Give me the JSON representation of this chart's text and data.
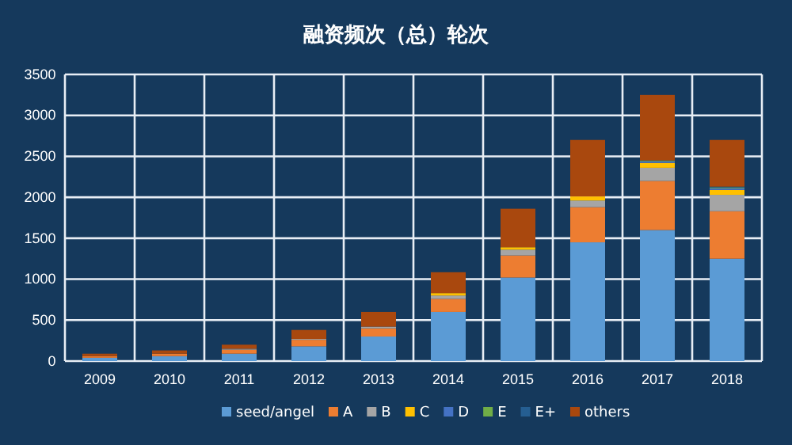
{
  "chart_data": {
    "type": "bar",
    "title": "融资频次（总）轮次",
    "stacked": true,
    "categories": [
      "2009",
      "2010",
      "2011",
      "2012",
      "2013",
      "2014",
      "2015",
      "2016",
      "2017",
      "2018"
    ],
    "series": [
      {
        "name": "seed/angel",
        "color": "#5b9bd5",
        "values": [
          40,
          60,
          90,
          180,
          300,
          600,
          1020,
          1450,
          1600,
          1250
        ]
      },
      {
        "name": "A",
        "color": "#ed7d31",
        "values": [
          20,
          30,
          50,
          80,
          100,
          160,
          270,
          430,
          600,
          580
        ]
      },
      {
        "name": "B",
        "color": "#a5a5a5",
        "values": [
          0,
          0,
          10,
          10,
          20,
          40,
          70,
          80,
          160,
          200
        ]
      },
      {
        "name": "C",
        "color": "#ffc000",
        "values": [
          0,
          0,
          0,
          0,
          0,
          30,
          30,
          50,
          60,
          60
        ]
      },
      {
        "name": "D",
        "color": "#4472c4",
        "values": [
          0,
          0,
          0,
          0,
          0,
          0,
          0,
          0,
          20,
          20
        ]
      },
      {
        "name": "E",
        "color": "#70ad47",
        "values": [
          0,
          0,
          0,
          0,
          0,
          0,
          0,
          0,
          10,
          10
        ]
      },
      {
        "name": "E+",
        "color": "#255e91",
        "values": [
          0,
          0,
          0,
          0,
          0,
          0,
          0,
          0,
          0,
          10
        ]
      },
      {
        "name": "others",
        "color": "#a9480e",
        "values": [
          30,
          40,
          50,
          110,
          180,
          255,
          470,
          690,
          800,
          570
        ]
      }
    ],
    "ylim": [
      0,
      3500
    ],
    "yticks": [
      0,
      500,
      1000,
      1500,
      2000,
      2500,
      3000,
      3500
    ],
    "grid": true,
    "legend": "bottom"
  }
}
